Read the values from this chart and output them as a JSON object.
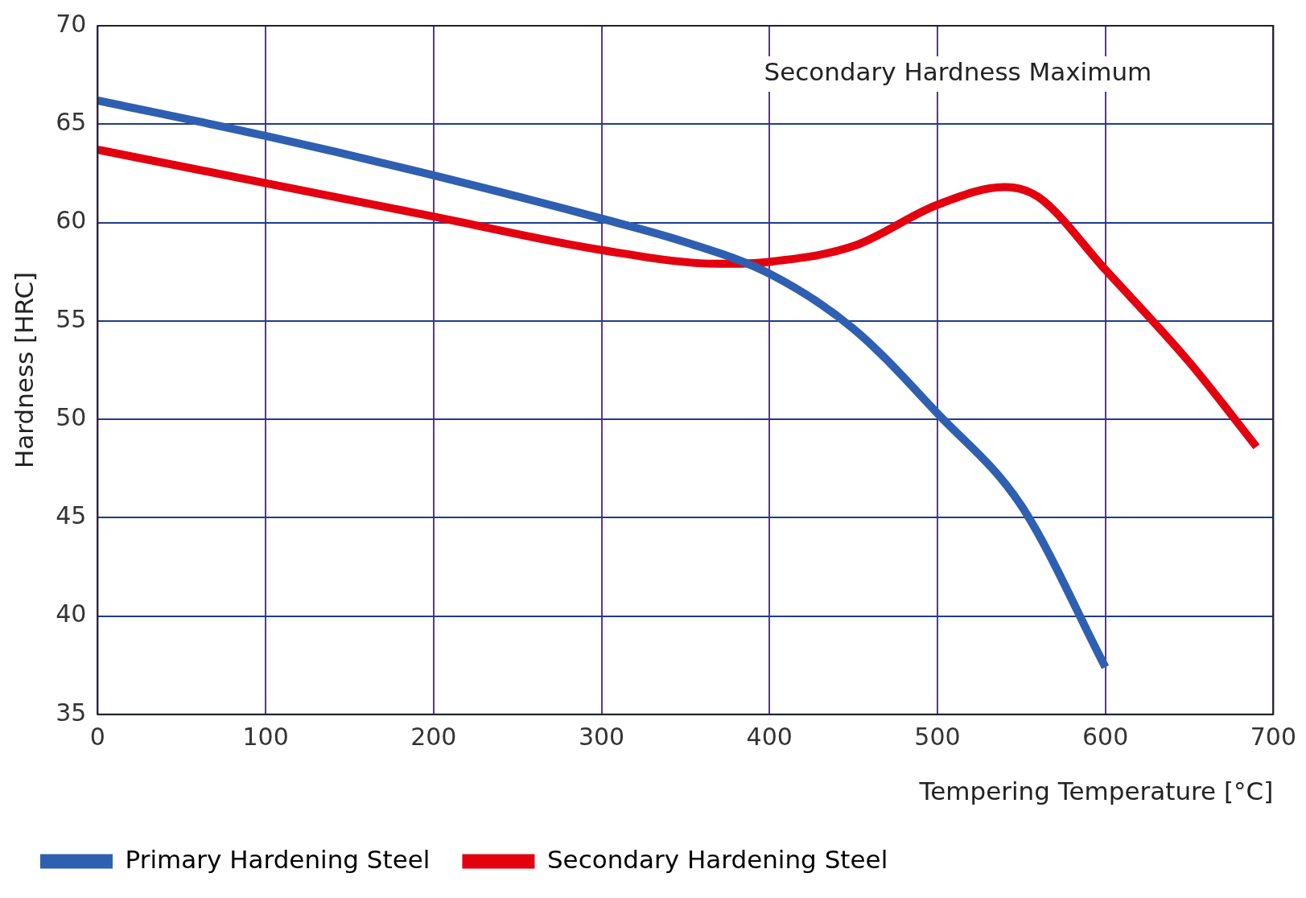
{
  "chart_data": {
    "type": "line",
    "xlabel": "Tempering Temperature [°C]",
    "ylabel": "Hardness [HRC]",
    "xlim": [
      0,
      700
    ],
    "xticks": [
      0,
      100,
      200,
      300,
      400,
      500,
      600,
      700
    ],
    "ylim": [
      35,
      70
    ],
    "yticks": [
      35,
      40,
      45,
      50,
      55,
      60,
      65,
      70
    ],
    "grid": true,
    "legend": "bottom left",
    "marker": "none",
    "line_style": "solid",
    "annotations": [
      "Secondary Hardness Maximum"
    ],
    "series": [
      {
        "name": "Primary Hardening Steel",
        "color": "#2f5fb0",
        "x": [
          0,
          100,
          200,
          300,
          350,
          400,
          450,
          500,
          550,
          600
        ],
        "values": [
          66.2,
          64.4,
          62.4,
          60.2,
          59.0,
          57.4,
          54.6,
          50.3,
          45.6,
          37.4
        ]
      },
      {
        "name": "Secondary Hardening Steel",
        "color": "#e3000f",
        "x": [
          0,
          100,
          200,
          300,
          370,
          400,
          450,
          500,
          540,
          560,
          600,
          650,
          690
        ],
        "values": [
          63.7,
          62.0,
          60.3,
          58.6,
          57.9,
          58.0,
          58.8,
          60.9,
          61.8,
          61.3,
          57.6,
          52.9,
          48.6
        ]
      }
    ]
  }
}
